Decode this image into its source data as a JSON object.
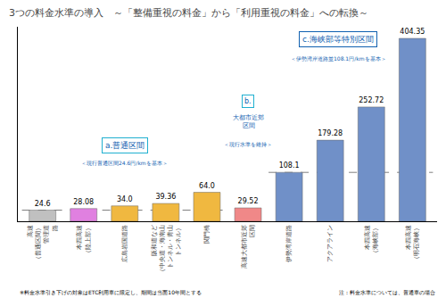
{
  "chart_data": {
    "type": "bar",
    "title": "3つの料金水準の導入　～「整備重視の料金」から「利用重視の料金」への転換～",
    "categories": [
      "高速\n（普通区間）\n管理道\n路",
      "本四高速\n（陸上部）",
      "広島岩国道路",
      "阪和道など\n（中央道・海南山\nトンネル・青山\nトンネル）",
      "関門橋",
      "高速大都市近郊\n区間",
      "伊勢湾岸道路",
      "アクアライン",
      "本四高速\n（海峡部）",
      "本四高速\n（明石海峡）"
    ],
    "values": [
      24.6,
      28.08,
      34.0,
      39.36,
      64.0,
      29.52,
      108.1,
      179.28,
      252.72,
      404.35
    ],
    "value_labels": [
      "24.6",
      "28.08",
      "34.0",
      "39.36",
      "64.0",
      "29.52",
      "108.1",
      "179.28",
      "252.72",
      "404.35"
    ],
    "data_labels": true,
    "colors": [
      "#c0c0c0",
      "#e080e0",
      "#f0b840",
      "#f0b840",
      "#f0b840",
      "#f08888",
      "#7090c8",
      "#7090c8",
      "#7090c8",
      "#7090c8"
    ],
    "reference_lines": [
      24.6,
      108.1
    ],
    "annotations": [
      "a.普通区間",
      "＜現行普通区間24.6円/kmを基本＞",
      "b.",
      "大都市近郊\n区間",
      "＜現行水準を維持＞",
      "c.海峡部等特別区間",
      "＜伊勢湾岸道路並108.1円/kmを基本＞",
      "※料金水準引き下げの対象はETC利用車に限定し、期間は当面10年間とする",
      "注：料金水準については、普通車の場合"
    ],
    "ylim": [
      0,
      430
    ],
    "yticks": [],
    "tick_labels": "x",
    "grid": false
  }
}
